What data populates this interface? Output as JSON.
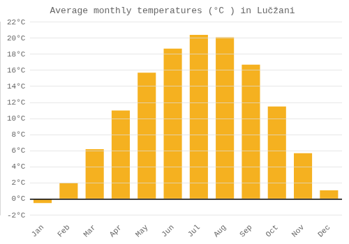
{
  "chart_data": {
    "type": "bar",
    "title": "Average monthly temperatures (°C ) in Lučžani",
    "categories": [
      "Jan",
      "Feb",
      "Mar",
      "Apr",
      "May",
      "Jun",
      "Jul",
      "Aug",
      "Sep",
      "Oct",
      "Nov",
      "Dec"
    ],
    "values": [
      -0.5,
      2.0,
      6.2,
      11.0,
      15.7,
      18.7,
      20.4,
      20.1,
      16.7,
      11.5,
      5.7,
      1.1
    ],
    "color": "#F5B120",
    "ylim": [
      -2,
      22
    ],
    "yticks": [
      {
        "value": -2,
        "label": "-2°C"
      },
      {
        "value": 0,
        "label": "0°C"
      },
      {
        "value": 2,
        "label": "2°C"
      },
      {
        "value": 4,
        "label": "4°C"
      },
      {
        "value": 6,
        "label": "6°C"
      },
      {
        "value": 8,
        "label": "8°C"
      },
      {
        "value": 10,
        "label": "10°C"
      },
      {
        "value": 12,
        "label": "12°C"
      },
      {
        "value": 14,
        "label": "14°C"
      },
      {
        "value": 16,
        "label": "16°C"
      },
      {
        "value": 18,
        "label": "18°C"
      },
      {
        "value": 20,
        "label": "20°C"
      },
      {
        "value": 22,
        "label": "22°C"
      }
    ],
    "grid": true
  }
}
